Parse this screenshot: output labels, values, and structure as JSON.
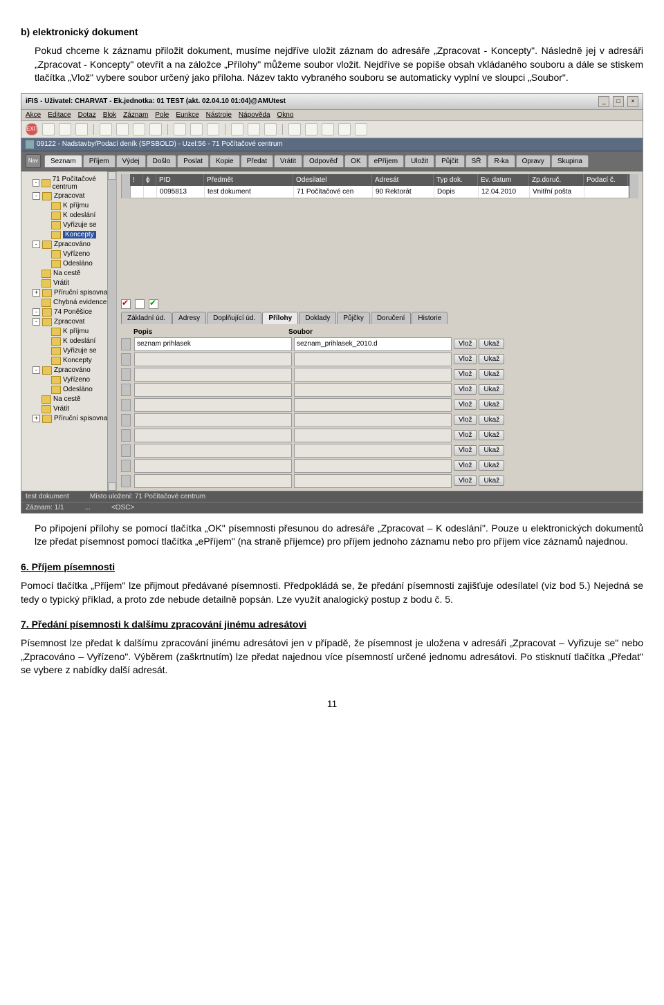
{
  "doc": {
    "heading_b": "b) elektronický dokument",
    "para_b": "Pokud chceme k záznamu přiložit dokument, musíme nejdříve uložit záznam do adresáře „Zpracovat - Koncepty\". Následně jej v adresáři „Zpracovat - Koncepty\" otevřít a na záložce „Přílohy\" můžeme soubor vložit. Nejdříve se popíše obsah vkládaného souboru a dále se stiskem tlačítka „Vlož\" vybere soubor určený jako příloha. Název takto vybraného souboru se automaticky vyplní ve sloupci „Soubor\".",
    "para_after": "Po připojení přílohy se pomocí tlačítka „OK\" písemnosti přesunou do adresáře „Zpracovat – K odeslání\". Pouze u elektronických dokumentů lze předat písemnost pomocí tlačítka „ePříjem\" (na straně příjemce) pro příjem jednoho záznamu nebo pro příjem více záznamů najednou.",
    "heading_6": "6. Příjem písemnosti",
    "para_6": "Pomocí tlačítka „Příjem\" lze přijmout předávané písemnosti. Předpokládá se, že předání písemnosti zajišťuje odesílatel (viz bod 5.) Nejedná se tedy o typický příklad, a proto zde nebude detailně popsán. Lze využít analogický postup z bodu č. 5.",
    "heading_7": "7. Předání písemnosti k dalšímu zpracování jinému adresátovi",
    "para_7": "Písemnost lze předat k dalšímu zpracování jinému adresátovi jen v případě, že písemnost je uložena v adresáři „Zpracovat – Vyřizuje se\" nebo „Zpracováno – Vyřízeno\". Výběrem (zaškrtnutím) lze předat najednou více písemností určené jednomu adresátovi. Po stisknutí tlačítka „Předat\" se vybere z nabídky další adresát.",
    "page_num": "11"
  },
  "app": {
    "title": "iFIS - Uživatel: CHARVAT - Ek.jednotka: 01 TEST (akt. 02.04.10 01:04)@AMUtest",
    "menu": [
      "Akce",
      "Editace",
      "Dotaz",
      "Blok",
      "Záznam",
      "Pole",
      "Eunkce",
      "Nástroje",
      "Nápověda",
      "Okno"
    ],
    "subtitle": "09122 - Nadstavby/Podací deník (SPSBOLD) - Uzel:56 - 71 Počítačové centrum",
    "nav_label": "Nav",
    "tabs": [
      "Seznam",
      "Příjem",
      "Výdej",
      "Došlo",
      "Poslat",
      "Kopie",
      "Předat",
      "Vrátit",
      "Odpověď",
      "OK",
      "ePříjem",
      "Uložit",
      "Půjčit",
      "SŘ",
      "R-ka",
      "Opravy",
      "Skupina"
    ],
    "grid": {
      "headers": [
        "!",
        "ɸ",
        "PID",
        "Předmět",
        "Odesilatel",
        "Adresát",
        "Typ dok.",
        "Ev. datum",
        "Zp.doruč.",
        "Podací č."
      ],
      "row": [
        "",
        "",
        "0095813",
        "test dokument",
        "71 Počítačové cen",
        "90 Rektorát",
        "Dopis",
        "12.04.2010",
        "Vnitřní pošta",
        ""
      ]
    },
    "tree": [
      {
        "lvl": 1,
        "exp": "-",
        "label": "71 Počítačové centrum"
      },
      {
        "lvl": 1,
        "exp": "-",
        "label": "Zpracovat"
      },
      {
        "lvl": 2,
        "exp": "",
        "label": "K příjmu"
      },
      {
        "lvl": 2,
        "exp": "",
        "label": "K odeslání"
      },
      {
        "lvl": 2,
        "exp": "",
        "label": "Vyřizuje se"
      },
      {
        "lvl": 2,
        "exp": "",
        "label": "Koncepty",
        "sel": true
      },
      {
        "lvl": 1,
        "exp": "-",
        "label": "Zpracováno"
      },
      {
        "lvl": 2,
        "exp": "",
        "label": "Vyřízeno"
      },
      {
        "lvl": 2,
        "exp": "",
        "label": "Odesláno"
      },
      {
        "lvl": 1,
        "exp": "",
        "label": "Na cestě"
      },
      {
        "lvl": 1,
        "exp": "",
        "label": "Vrátit"
      },
      {
        "lvl": 1,
        "exp": "+",
        "label": "Příruční spisovna"
      },
      {
        "lvl": 1,
        "exp": "",
        "label": "Chybná evidence"
      },
      {
        "lvl": 1,
        "exp": "-",
        "label": "74 Poněšice"
      },
      {
        "lvl": 1,
        "exp": "-",
        "label": "Zpracovat"
      },
      {
        "lvl": 2,
        "exp": "",
        "label": "K příjmu"
      },
      {
        "lvl": 2,
        "exp": "",
        "label": "K odeslání"
      },
      {
        "lvl": 2,
        "exp": "",
        "label": "Vyřizuje se"
      },
      {
        "lvl": 2,
        "exp": "",
        "label": "Koncepty"
      },
      {
        "lvl": 1,
        "exp": "-",
        "label": "Zpracováno"
      },
      {
        "lvl": 2,
        "exp": "",
        "label": "Vyřízeno"
      },
      {
        "lvl": 2,
        "exp": "",
        "label": "Odesláno"
      },
      {
        "lvl": 1,
        "exp": "",
        "label": "Na cestě"
      },
      {
        "lvl": 1,
        "exp": "",
        "label": "Vrátit"
      },
      {
        "lvl": 1,
        "exp": "+",
        "label": "Příruční spisovna"
      }
    ],
    "subtabs": [
      "Základní úd.",
      "Adresy",
      "Doplňující úd.",
      "Přílohy",
      "Doklady",
      "Půjčky",
      "Doručení",
      "Historie"
    ],
    "subtab_active": 3,
    "attach": {
      "h_popis": "Popis",
      "h_soubor": "Soubor",
      "popis_w": 220,
      "soubor_w": 220,
      "btn_vloz": "Vlož",
      "btn_ukaz": "Ukaž",
      "rows": [
        {
          "popis": "seznam prihlasek",
          "soubor": "seznam_prihlasek_2010.d"
        },
        {
          "popis": "",
          "soubor": ""
        },
        {
          "popis": "",
          "soubor": ""
        },
        {
          "popis": "",
          "soubor": ""
        },
        {
          "popis": "",
          "soubor": ""
        },
        {
          "popis": "",
          "soubor": ""
        },
        {
          "popis": "",
          "soubor": ""
        },
        {
          "popis": "",
          "soubor": ""
        },
        {
          "popis": "",
          "soubor": ""
        },
        {
          "popis": "",
          "soubor": ""
        }
      ]
    },
    "status": {
      "l1a": "test dokument",
      "l1b": "Místo uložení: 71 Počítačové centrum",
      "l2a": "Záznam: 1/1",
      "l2b": "...",
      "l2c": "<OSC>"
    }
  }
}
